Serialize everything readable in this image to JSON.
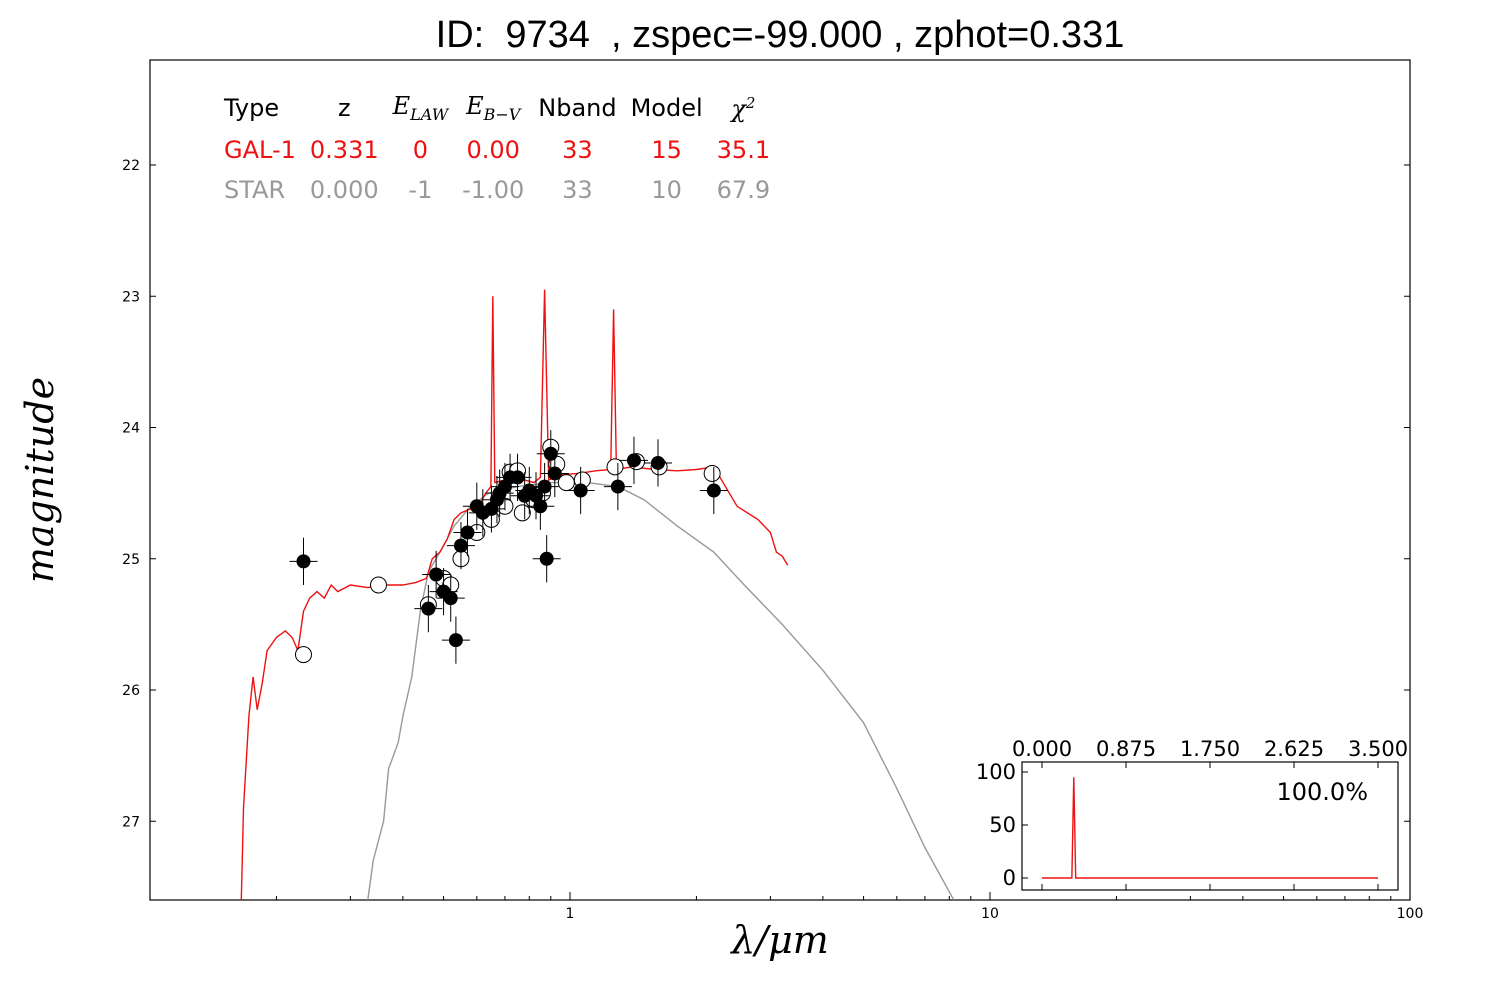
{
  "title": "ID:  9734  , zspec=-99.000 , zphot=0.331",
  "axes": {
    "xlabel": "λ/μm",
    "ylabel": "magnitude",
    "x_scale": "log",
    "y_inverted": true
  },
  "legend_table": {
    "headers": [
      "Type",
      "z",
      "E_LAW",
      "E_B−V",
      "Nband",
      "Model",
      "χ²"
    ],
    "rows": [
      {
        "cells": [
          "GAL-1",
          "0.331",
          "0",
          "0.00",
          "33",
          "15",
          "35.1"
        ],
        "color": "#ee1111"
      },
      {
        "cells": [
          "STAR",
          "0.000",
          "-1",
          "-1.00",
          "33",
          "10",
          "67.9"
        ],
        "color": "#999999"
      }
    ]
  },
  "inset": {
    "x_ticks": [
      "0.000",
      "0.875",
      "1.750",
      "2.625",
      "3.500"
    ],
    "y_ticks": [
      "100",
      "50",
      "0"
    ],
    "percent": "100.0%",
    "peak_z": 0.331,
    "peak_value": 95,
    "xlim": [
      0,
      3.5
    ],
    "ylim": [
      0,
      100
    ]
  },
  "chart_data": {
    "type": "scatter",
    "title": "ID:  9734  , zspec=-99.000 , zphot=0.331",
    "xlabel": "λ/μm",
    "ylabel": "magnitude",
    "x_scale": "log",
    "xlim": [
      0.1,
      100
    ],
    "ylim": [
      27.6,
      21.2
    ],
    "x_ticks": [
      "1",
      "10",
      "100"
    ],
    "y_ticks": [
      "22",
      "23",
      "24",
      "25",
      "26",
      "27"
    ],
    "colors": {
      "galaxy_model": "#ee1111",
      "star_model": "#999999",
      "observed": "#000000"
    },
    "series": [
      {
        "name": "GAL-1",
        "kind": "line",
        "points": [
          [
            0.165,
            27.6
          ],
          [
            0.167,
            26.9
          ],
          [
            0.172,
            26.2
          ],
          [
            0.176,
            25.9
          ],
          [
            0.18,
            26.15
          ],
          [
            0.185,
            25.95
          ],
          [
            0.19,
            25.7
          ],
          [
            0.2,
            25.6
          ],
          [
            0.21,
            25.55
          ],
          [
            0.218,
            25.6
          ],
          [
            0.225,
            25.7
          ],
          [
            0.232,
            25.4
          ],
          [
            0.24,
            25.3
          ],
          [
            0.25,
            25.25
          ],
          [
            0.26,
            25.3
          ],
          [
            0.27,
            25.2
          ],
          [
            0.28,
            25.25
          ],
          [
            0.3,
            25.2
          ],
          [
            0.33,
            25.22
          ],
          [
            0.36,
            25.2
          ],
          [
            0.4,
            25.2
          ],
          [
            0.43,
            25.18
          ],
          [
            0.455,
            25.15
          ],
          [
            0.47,
            25.0
          ],
          [
            0.49,
            24.95
          ],
          [
            0.51,
            24.85
          ],
          [
            0.53,
            24.7
          ],
          [
            0.55,
            24.65
          ],
          [
            0.58,
            24.62
          ],
          [
            0.61,
            24.58
          ],
          [
            0.63,
            24.5
          ],
          [
            0.648,
            24.45
          ],
          [
            0.655,
            23.0
          ],
          [
            0.662,
            24.42
          ],
          [
            0.7,
            24.4
          ],
          [
            0.74,
            24.42
          ],
          [
            0.78,
            24.4
          ],
          [
            0.82,
            24.42
          ],
          [
            0.85,
            24.38
          ],
          [
            0.87,
            22.95
          ],
          [
            0.89,
            24.4
          ],
          [
            0.95,
            24.36
          ],
          [
            1.05,
            24.35
          ],
          [
            1.15,
            24.33
          ],
          [
            1.25,
            24.32
          ],
          [
            1.27,
            23.1
          ],
          [
            1.29,
            24.32
          ],
          [
            1.4,
            24.3
          ],
          [
            1.6,
            24.32
          ],
          [
            1.8,
            24.33
          ],
          [
            2.0,
            24.32
          ],
          [
            2.2,
            24.3
          ],
          [
            2.5,
            24.6
          ],
          [
            2.8,
            24.7
          ],
          [
            3.0,
            24.8
          ],
          [
            3.1,
            24.95
          ],
          [
            3.2,
            24.98
          ],
          [
            3.3,
            25.05
          ]
        ]
      },
      {
        "name": "STAR",
        "kind": "line",
        "points": [
          [
            0.33,
            27.6
          ],
          [
            0.34,
            27.3
          ],
          [
            0.36,
            27.0
          ],
          [
            0.37,
            26.6
          ],
          [
            0.39,
            26.4
          ],
          [
            0.4,
            26.2
          ],
          [
            0.42,
            25.9
          ],
          [
            0.44,
            25.4
          ],
          [
            0.46,
            25.1
          ],
          [
            0.49,
            24.95
          ],
          [
            0.53,
            24.75
          ],
          [
            0.58,
            24.6
          ],
          [
            0.64,
            24.5
          ],
          [
            0.75,
            24.45
          ],
          [
            0.9,
            24.42
          ],
          [
            1.1,
            24.42
          ],
          [
            1.3,
            24.45
          ],
          [
            1.5,
            24.55
          ],
          [
            1.8,
            24.75
          ],
          [
            2.2,
            24.95
          ],
          [
            2.6,
            25.2
          ],
          [
            3.2,
            25.5
          ],
          [
            4.0,
            25.85
          ],
          [
            5.0,
            26.25
          ],
          [
            6.0,
            26.75
          ],
          [
            7.0,
            27.2
          ],
          [
            8.2,
            27.6
          ]
        ]
      },
      {
        "name": "observed",
        "kind": "points",
        "points": [
          [
            0.232,
            25.02
          ],
          [
            0.46,
            25.38
          ],
          [
            0.48,
            25.12
          ],
          [
            0.5,
            25.25
          ],
          [
            0.52,
            25.3
          ],
          [
            0.535,
            25.62
          ],
          [
            0.55,
            24.9
          ],
          [
            0.57,
            24.8
          ],
          [
            0.6,
            24.6
          ],
          [
            0.62,
            24.65
          ],
          [
            0.65,
            24.62
          ],
          [
            0.67,
            24.55
          ],
          [
            0.68,
            24.5
          ],
          [
            0.7,
            24.45
          ],
          [
            0.72,
            24.38
          ],
          [
            0.75,
            24.38
          ],
          [
            0.78,
            24.52
          ],
          [
            0.8,
            24.48
          ],
          [
            0.83,
            24.52
          ],
          [
            0.85,
            24.6
          ],
          [
            0.87,
            24.45
          ],
          [
            0.88,
            25.0
          ],
          [
            0.9,
            24.2
          ],
          [
            0.92,
            24.35
          ],
          [
            1.06,
            24.48
          ],
          [
            1.3,
            24.45
          ],
          [
            1.42,
            24.25
          ],
          [
            1.62,
            24.27
          ],
          [
            2.2,
            24.48
          ]
        ]
      },
      {
        "name": "model",
        "kind": "open_points",
        "points": [
          [
            0.232,
            25.73
          ],
          [
            0.35,
            25.2
          ],
          [
            0.46,
            25.35
          ],
          [
            0.5,
            25.15
          ],
          [
            0.52,
            25.2
          ],
          [
            0.55,
            25.0
          ],
          [
            0.6,
            24.8
          ],
          [
            0.65,
            24.7
          ],
          [
            0.7,
            24.6
          ],
          [
            0.72,
            24.34
          ],
          [
            0.75,
            24.33
          ],
          [
            0.77,
            24.65
          ],
          [
            0.82,
            24.55
          ],
          [
            0.86,
            24.5
          ],
          [
            0.9,
            24.15
          ],
          [
            0.93,
            24.28
          ],
          [
            0.98,
            24.42
          ],
          [
            1.07,
            24.4
          ],
          [
            1.28,
            24.3
          ],
          [
            1.44,
            24.26
          ],
          [
            1.63,
            24.3
          ],
          [
            2.18,
            24.35
          ]
        ]
      }
    ]
  }
}
